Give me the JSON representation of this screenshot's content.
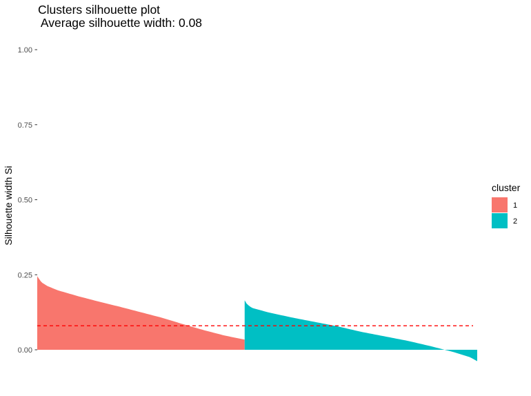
{
  "chart_data": {
    "type": "area",
    "title": "Clusters silhouette plot",
    "subtitle": " Average silhouette width: 0.08",
    "ylabel": "Silhouette width Si",
    "xlabel": "",
    "ylim": [
      0.0,
      1.0
    ],
    "yticks": [
      "0.00",
      "0.25",
      "0.50",
      "0.75",
      "1.00"
    ],
    "average_silhouette_width": 0.08,
    "reference_line": {
      "y": 0.08,
      "style": "dashed",
      "color": "#ff0000"
    },
    "legend": {
      "title": "cluster",
      "position": "right"
    },
    "grid": false,
    "series": [
      {
        "name": "1",
        "color": "#f8766d",
        "n_points": 330,
        "profile": [
          [
            0,
            0.245
          ],
          [
            0.02,
            0.225
          ],
          [
            0.05,
            0.212
          ],
          [
            0.1,
            0.198
          ],
          [
            0.2,
            0.178
          ],
          [
            0.3,
            0.16
          ],
          [
            0.4,
            0.143
          ],
          [
            0.5,
            0.125
          ],
          [
            0.6,
            0.107
          ],
          [
            0.7,
            0.086
          ],
          [
            0.8,
            0.066
          ],
          [
            0.9,
            0.048
          ],
          [
            0.97,
            0.038
          ],
          [
            1.0,
            0.034
          ]
        ]
      },
      {
        "name": "2",
        "color": "#00bfc4",
        "n_points": 370,
        "profile": [
          [
            0,
            0.165
          ],
          [
            0.01,
            0.152
          ],
          [
            0.03,
            0.14
          ],
          [
            0.1,
            0.125
          ],
          [
            0.2,
            0.108
          ],
          [
            0.3,
            0.093
          ],
          [
            0.4,
            0.078
          ],
          [
            0.5,
            0.06
          ],
          [
            0.6,
            0.045
          ],
          [
            0.7,
            0.03
          ],
          [
            0.8,
            0.012
          ],
          [
            0.9,
            -0.008
          ],
          [
            0.97,
            -0.025
          ],
          [
            1.0,
            -0.038
          ]
        ]
      }
    ]
  }
}
